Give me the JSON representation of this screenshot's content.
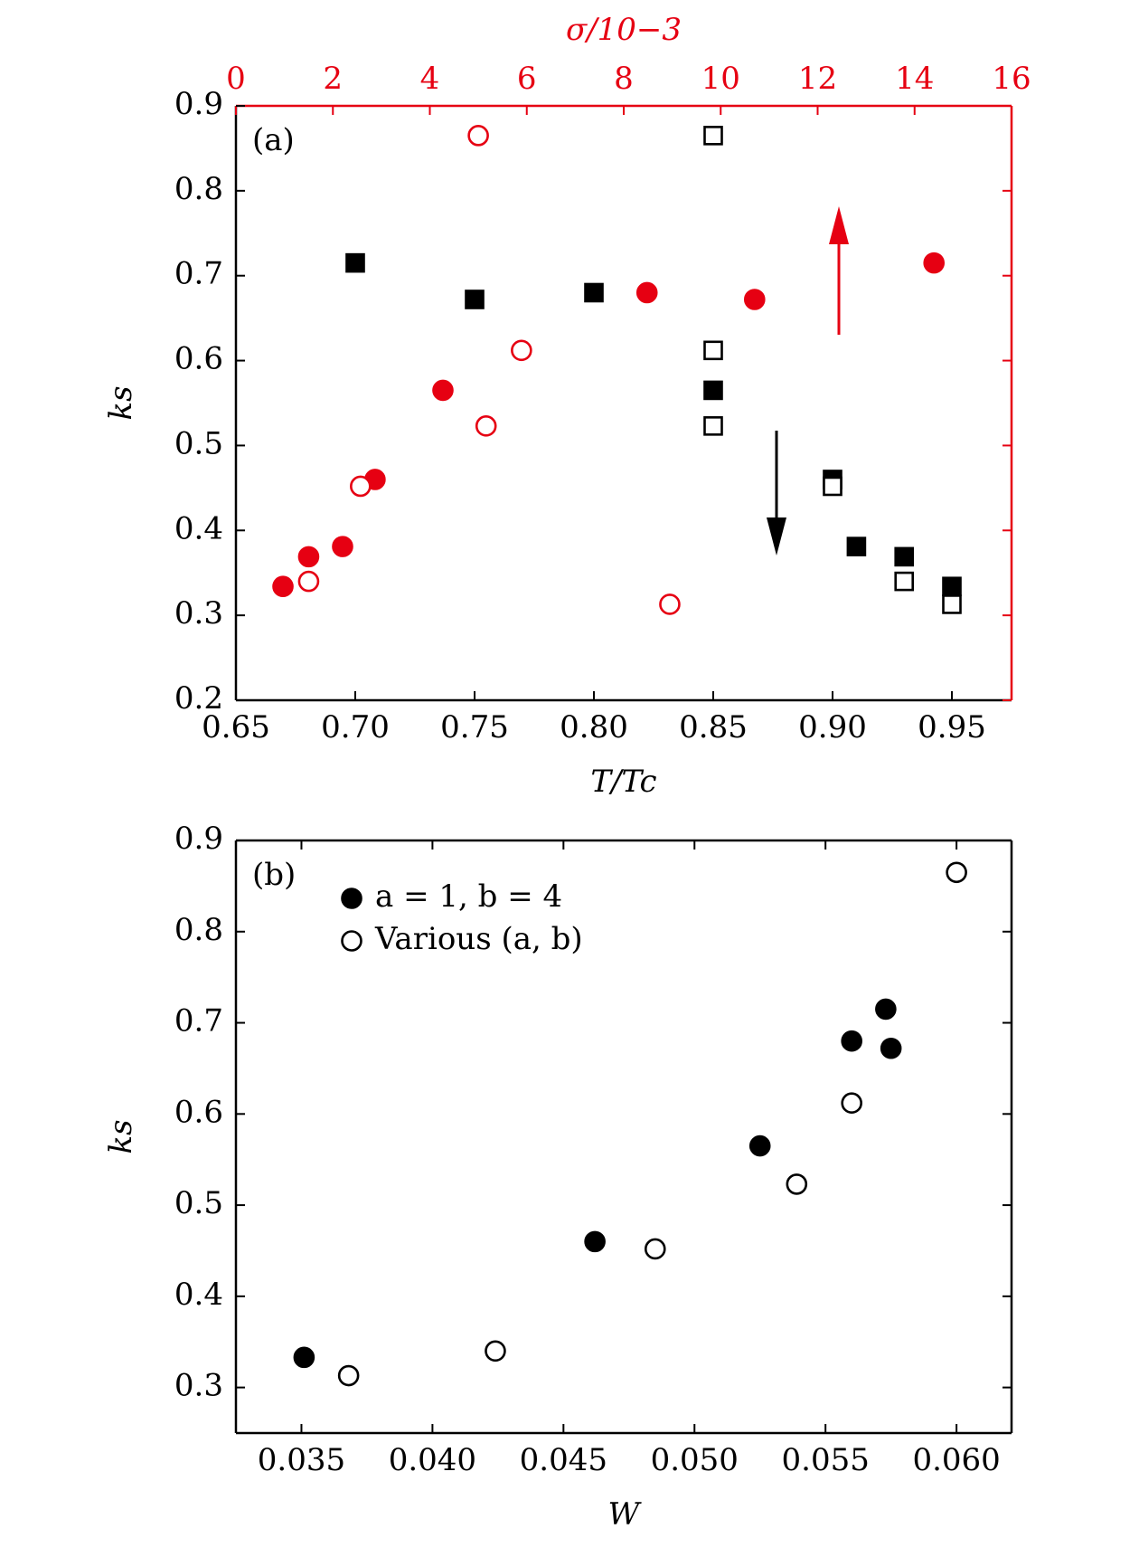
{
  "chart_data": [
    {
      "type": "scatter",
      "panel_label": "(a)",
      "xlabel": "T/Tc",
      "x2label": "σ/10−3",
      "ylabel": "ks",
      "xlim": [
        0.65,
        0.975
      ],
      "xticks": [
        0.65,
        {
          "value": 0.7,
          "label": "0.70"
        },
        0.75,
        {
          "value": 0.8,
          "label": "0.80"
        },
        0.85,
        {
          "value": 0.9,
          "label": "0.90"
        },
        0.95
      ],
      "x2lim": [
        0,
        16
      ],
      "x2ticks": [
        0,
        2,
        4,
        6,
        8,
        10,
        12,
        14,
        16
      ],
      "x2color": "#e60012",
      "ylim": [
        0.2,
        0.9
      ],
      "yticks": [
        0.2,
        0.3,
        0.4,
        0.5,
        0.6,
        0.7,
        0.8,
        0.9
      ],
      "series": [
        {
          "color": "#000000",
          "marker": "square",
          "filled": true,
          "x": [
            0.7,
            0.75,
            0.8,
            0.85,
            0.9,
            0.91,
            0.93,
            0.95
          ],
          "values": [
            0.715,
            0.672,
            0.68,
            0.565,
            0.46,
            0.381,
            0.369,
            0.334
          ]
        },
        {
          "color": "#000000",
          "marker": "square",
          "filled": false,
          "x": [
            0.85,
            0.85,
            0.85,
            0.9,
            0.93,
            0.95
          ],
          "values": [
            0.865,
            0.612,
            0.523,
            0.452,
            0.34,
            0.313
          ]
        },
        {
          "color": "#e60012",
          "marker": "circle",
          "filled": true,
          "axis": "x2",
          "x": [
            0.97,
            1.5,
            2.2,
            2.87,
            4.27,
            8.48,
            10.7,
            14.4
          ],
          "values": [
            0.334,
            0.369,
            0.381,
            0.46,
            0.565,
            0.68,
            0.672,
            0.715
          ]
        },
        {
          "color": "#e60012",
          "marker": "circle",
          "filled": false,
          "axis": "x2",
          "x": [
            2.57,
            1.5,
            5.0,
            5.89,
            5.16,
            8.95
          ],
          "values": [
            0.452,
            0.34,
            0.865,
            0.612,
            0.523,
            0.313
          ]
        }
      ]
    },
    {
      "type": "scatter",
      "panel_label": "(b)",
      "xlabel": "W",
      "ylabel": "ks",
      "xlim": [
        0.0325,
        0.0621
      ],
      "xticks": [
        0.035,
        {
          "value": 0.04,
          "label": "0.040"
        },
        0.045,
        {
          "value": 0.05,
          "label": "0.050"
        },
        0.055,
        {
          "value": 0.06,
          "label": "0.060"
        }
      ],
      "ylim": [
        0.25,
        0.9
      ],
      "yticks": [
        0.3,
        0.4,
        0.5,
        0.6,
        0.7,
        0.8,
        0.9
      ],
      "legend": "upper left",
      "series": [
        {
          "name": "a = 1, b = 4",
          "color": "#000000",
          "marker": "circle",
          "filled": true,
          "x": [
            0.0351,
            0.0462,
            0.0525,
            0.056,
            0.0573,
            0.0575
          ],
          "values": [
            0.333,
            0.46,
            0.565,
            0.68,
            0.715,
            0.672
          ]
        },
        {
          "name": "Various (a, b)",
          "color": "#000000",
          "marker": "circle",
          "filled": false,
          "x": [
            0.0368,
            0.0424,
            0.0485,
            0.0539,
            0.056,
            0.06
          ],
          "values": [
            0.313,
            0.34,
            0.452,
            0.523,
            0.612,
            0.865
          ]
        }
      ]
    }
  ]
}
